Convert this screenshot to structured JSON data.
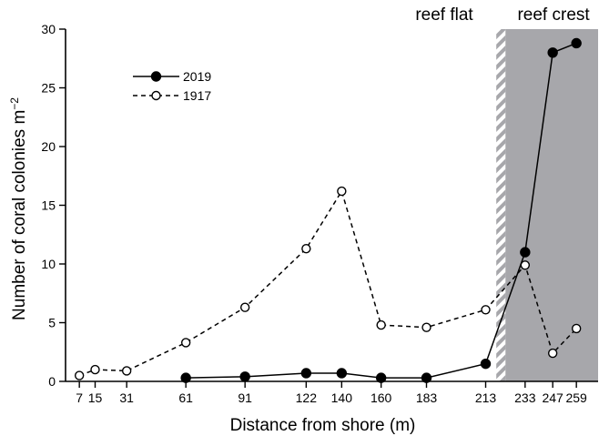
{
  "chart_data": {
    "type": "line",
    "xlabel": "Distance from shore (m)",
    "ylabel": "Number of coral colonies m",
    "ylabel_superscript": "−2",
    "ylim": [
      0,
      30
    ],
    "xlim": [
      0,
      270
    ],
    "y_ticks": [
      0,
      5,
      10,
      15,
      20,
      25,
      30
    ],
    "x_ticks": [
      7,
      15,
      31,
      61,
      91,
      122,
      140,
      160,
      183,
      213,
      233,
      247,
      259
    ],
    "zones": [
      {
        "label": "reef flat",
        "x_center": 192
      },
      {
        "label": "reef crest",
        "x_start": 223,
        "x_end": 270,
        "color": "#a7a7ab",
        "hatch_at": 223
      }
    ],
    "legend_position": "upper-left",
    "series": [
      {
        "name": "2019",
        "style": "solid",
        "marker": "filled",
        "x": [
          61,
          91,
          122,
          140,
          160,
          183,
          213,
          233,
          247,
          259
        ],
        "values": [
          0.3,
          0.4,
          0.7,
          0.7,
          0.3,
          0.3,
          1.5,
          11.0,
          28.0,
          28.8
        ]
      },
      {
        "name": "1917",
        "style": "dashed",
        "marker": "open",
        "x": [
          7,
          15,
          31,
          61,
          91,
          122,
          140,
          160,
          183,
          213,
          233,
          247,
          259
        ],
        "values": [
          0.5,
          1.0,
          0.9,
          3.3,
          6.3,
          11.3,
          16.2,
          4.8,
          4.6,
          6.1,
          9.9,
          2.4,
          4.5
        ]
      }
    ]
  },
  "colors": {
    "line": "#000000",
    "shade": "#a7a7ab",
    "hatch": "#ffffff",
    "open_marker_fill": "#ffffff"
  }
}
